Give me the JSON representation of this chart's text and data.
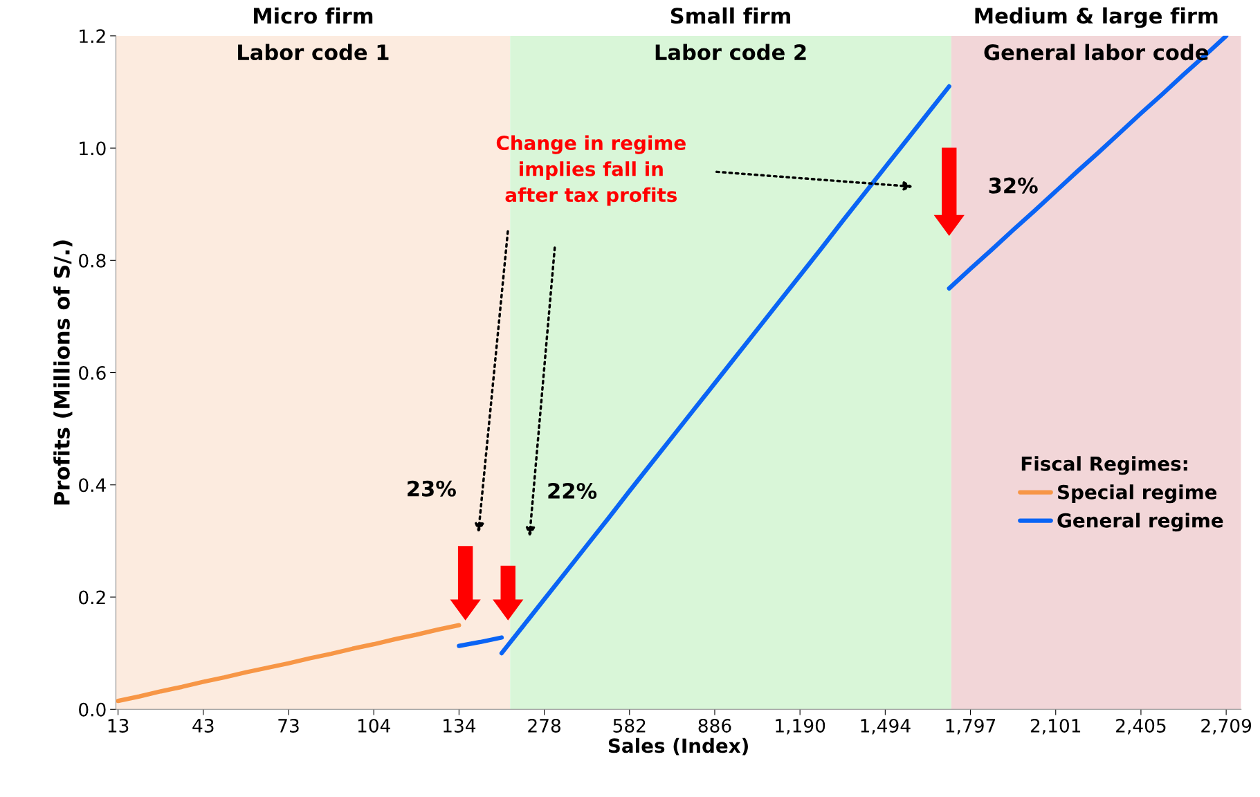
{
  "chart_data": {
    "type": "line",
    "xlabel": "Sales (Index)",
    "ylabel": "Profits (Millions of S/.)",
    "categories": [
      "13",
      null,
      null,
      null,
      "43",
      null,
      null,
      null,
      "73",
      null,
      null,
      null,
      "104",
      null,
      null,
      null,
      "134",
      null,
      null,
      null,
      "278",
      null,
      null,
      null,
      "582",
      null,
      null,
      null,
      "886",
      null,
      null,
      null,
      "1,190",
      null,
      null,
      null,
      "1,494",
      null,
      null,
      null,
      "1,797",
      null,
      null,
      null,
      "2,101",
      null,
      null,
      null,
      "2,405",
      null,
      null,
      null,
      "2,709"
    ],
    "series": [
      {
        "name": "Special regime",
        "color": "#f79646",
        "values": [
          0.015,
          0.023,
          0.032,
          0.04,
          0.049,
          0.057,
          0.066,
          0.074,
          0.082,
          0.091,
          0.099,
          0.108,
          0.116,
          0.125,
          0.133,
          0.142,
          0.15,
          null,
          null,
          null,
          null,
          null,
          null,
          null,
          null,
          null,
          null,
          null,
          null,
          null,
          null,
          null,
          null,
          null,
          null,
          null,
          null,
          null,
          null,
          null,
          null,
          null,
          null,
          null,
          null,
          null,
          null,
          null,
          null,
          null,
          null,
          null,
          null
        ]
      },
      {
        "name": "General regime",
        "color": "#0a64f5",
        "values": [
          null,
          null,
          null,
          null,
          null,
          null,
          null,
          null,
          null,
          null,
          null,
          null,
          null,
          null,
          null,
          null,
          0.113,
          0.12,
          0.128,
          null,
          null,
          null,
          null,
          null,
          null,
          null,
          null,
          null,
          null,
          null,
          null,
          null,
          null,
          null,
          null,
          null,
          null,
          null,
          null,
          null,
          null,
          null,
          null,
          null,
          null,
          null,
          null,
          null,
          null,
          null,
          null,
          null,
          null
        ]
      },
      {
        "color": "#0a64f5",
        "values": [
          null,
          null,
          null,
          null,
          null,
          null,
          null,
          null,
          null,
          null,
          null,
          null,
          null,
          null,
          null,
          null,
          null,
          null,
          0.1,
          0.148,
          0.196,
          0.244,
          0.292,
          0.34,
          0.389,
          0.437,
          0.485,
          0.533,
          0.581,
          0.629,
          0.677,
          0.725,
          0.773,
          0.821,
          0.87,
          0.918,
          0.966,
          1.014,
          1.062,
          1.11,
          null,
          null,
          null,
          null,
          null,
          null,
          null,
          null,
          null,
          null,
          null,
          null,
          null
        ]
      },
      {
        "color": "#0a64f5",
        "values": [
          null,
          null,
          null,
          null,
          null,
          null,
          null,
          null,
          null,
          null,
          null,
          null,
          null,
          null,
          null,
          null,
          null,
          null,
          null,
          null,
          null,
          null,
          null,
          null,
          null,
          null,
          null,
          null,
          null,
          null,
          null,
          null,
          null,
          null,
          null,
          null,
          null,
          null,
          null,
          0.75,
          0.785,
          0.819,
          0.854,
          0.888,
          0.923,
          0.958,
          0.992,
          1.027,
          1.062,
          1.096,
          1.131,
          1.165,
          1.2
        ]
      }
    ],
    "ylim": [
      0,
      1.2
    ],
    "yticks": [
      {
        "value": 0,
        "label": "0.0"
      },
      {
        "value": 0.2,
        "label": "0.2"
      },
      {
        "value": 0.4,
        "label": "0.4"
      },
      {
        "value": 0.6,
        "label": "0.6"
      },
      {
        "value": 0.8,
        "label": "0.8"
      },
      {
        "value": 1.0,
        "label": "1.0"
      },
      {
        "value": 1.2,
        "label": "1.2"
      }
    ],
    "annotations": [
      "Micro firm\nLabor code 1",
      "Small firm\nLabor code 2",
      "Medium & large firm\nGeneral labor code",
      "Change in regime\nimplies fall in\nafter tax profits",
      "23%",
      "22%",
      "32%"
    ],
    "legend_title": "Fiscal Regimes:",
    "legend": "right",
    "grid": false,
    "marker": "none",
    "line_style": "solid"
  }
}
